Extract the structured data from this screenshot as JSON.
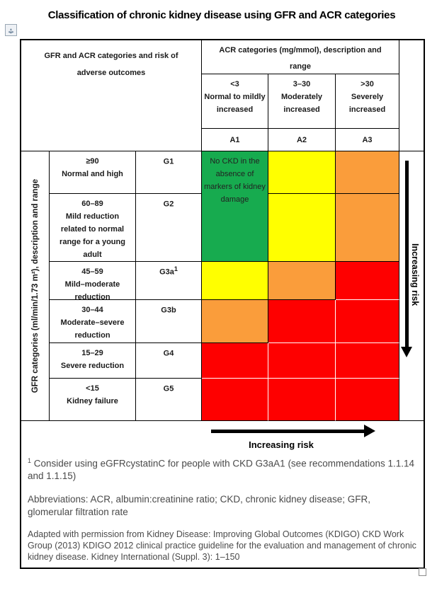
{
  "title": "Classification of chronic kidney disease using GFR and ACR categories",
  "colors": {
    "green": "#17AB4F",
    "yellow": "#FFFF00",
    "orange": "#FA9D3B",
    "red": "#FE0000"
  },
  "table": {
    "corner_header": "GFR and ACR categories and risk of adverse outcomes",
    "acr_header": "ACR categories (mg/mmol), description and range",
    "acr_columns": [
      {
        "range": "<3",
        "description": "Normal to mildly increased",
        "code": "A1"
      },
      {
        "range": "3–30",
        "description": "Moderately increased",
        "code": "A2"
      },
      {
        "range": ">30",
        "description": "Severely increased",
        "code": "A3"
      }
    ],
    "gfr_axis_label": "GFR categories (ml/min/1.73 m²), description and range",
    "no_ckd_note": "No CKD in the absence of markers of kidney damage",
    "gfr_rows": [
      {
        "range": "≥90",
        "description": "Normal and high",
        "code": "G1",
        "cells": [
          "green",
          "yellow",
          "orange"
        ]
      },
      {
        "range": "60–89",
        "description": "Mild reduction related to normal range for a young adult",
        "code": "G2",
        "cells": [
          "green",
          "yellow",
          "orange"
        ]
      },
      {
        "range": "45–59",
        "description": "Mild–moderate reduction",
        "code": "G3a",
        "code_sup": "1",
        "cells": [
          "yellow",
          "orange",
          "red"
        ]
      },
      {
        "range": "30–44",
        "description": "Moderate–severe reduction",
        "code": "G3b",
        "cells": [
          "orange",
          "red",
          "red"
        ]
      },
      {
        "range": "15–29",
        "description": "Severe reduction",
        "code": "G4",
        "cells": [
          "red",
          "red",
          "red"
        ]
      },
      {
        "range": "<15",
        "description": "Kidney failure",
        "code": "G5",
        "cells": [
          "red",
          "red",
          "red"
        ]
      }
    ],
    "risk_arrow_horizontal_label": "Increasing risk",
    "risk_arrow_vertical_label": "Increasing risk"
  },
  "footnotes": {
    "footnote1_sup": "1",
    "footnote1": "Consider using eGFRcystatinC for people with CKD G3aA1 (see recommendations 1.1.14 and 1.1.15)",
    "abbreviations": "Abbreviations: ACR, albumin:creatinine ratio; CKD, chronic kidney disease; GFR, glomerular filtration rate",
    "source": "Adapted with permission from Kidney Disease: Improving Global Outcomes (KDIGO) CKD Work Group (2013) KDIGO 2012 clinical practice guideline for the evaluation and management of chronic kidney disease. Kidney International (Suppl. 3): 1–150"
  }
}
